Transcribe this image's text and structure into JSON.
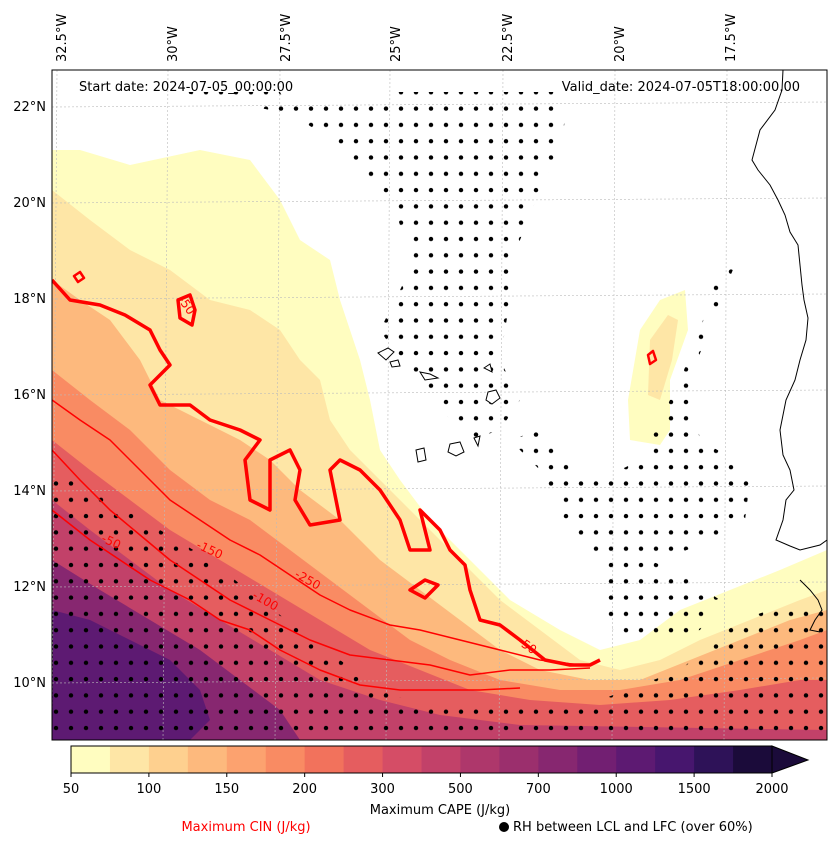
{
  "header": {
    "start_date": "Start date: 2024-07-05_00:00:00",
    "valid_date": "Valid_date: 2024-07-05T18:00:00.00"
  },
  "axes": {
    "lon_labels": [
      "32.5°W",
      "30°W",
      "27.5°W",
      "25°W",
      "22.5°W",
      "20°W",
      "17.5°W"
    ],
    "lat_labels": [
      "22°N",
      "20°N",
      "18°N",
      "16°N",
      "14°N",
      "12°N",
      "10°N"
    ]
  },
  "contour_labels": [
    "-50",
    "-50",
    "-150",
    "-250",
    "-100",
    "-50"
  ],
  "colorbar": {
    "ticks": [
      "50",
      "100",
      "150",
      "200",
      "300",
      "500",
      "700",
      "1000",
      "1500",
      "2000"
    ],
    "label": "Maximum CAPE (J/kg)",
    "colors": [
      "#fffdc0",
      "#fee6a6",
      "#fed08f",
      "#fdb97d",
      "#fca26f",
      "#f98b63",
      "#f2725c",
      "#e55d5f",
      "#d54d66",
      "#c24169",
      "#ae376b",
      "#9b2f6d",
      "#872770",
      "#721f72",
      "#5d1a72",
      "#47166e",
      "#2e1258",
      "#1b0b3a"
    ]
  },
  "legend": {
    "cin_label": "Maximum CIN (J/kg)",
    "rh_label": "RH between LCL and LFC (over 60%)",
    "cin_color": "#ff0000"
  }
}
